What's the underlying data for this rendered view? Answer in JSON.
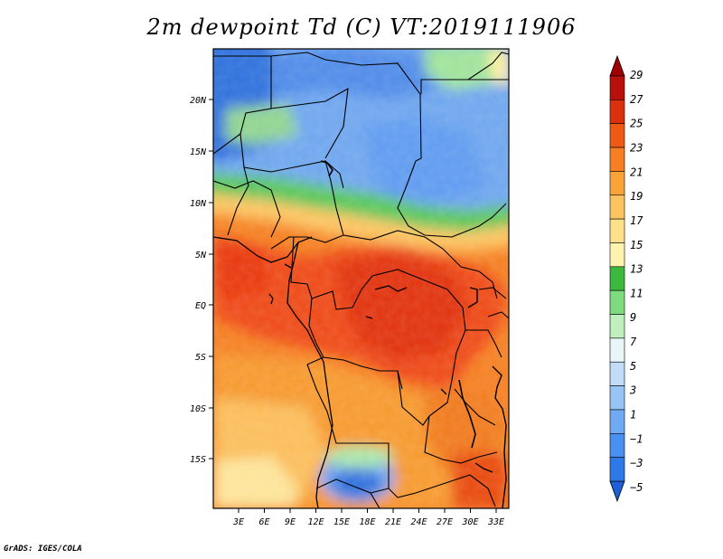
{
  "title": "2m dewpoint Td (C) VT:2019111906",
  "footer": "GrADS: IGES/COLA",
  "map": {
    "lat_labels": [
      "20N",
      "15N",
      "10N",
      "5N",
      "EQ",
      "5S",
      "10S",
      "15S"
    ],
    "lon_labels": [
      "3E",
      "6E",
      "9E",
      "12E",
      "15E",
      "18E",
      "21E",
      "24E",
      "27E",
      "30E",
      "33E"
    ],
    "lon_range": [
      0,
      35
    ],
    "lat_range": [
      -20,
      24
    ]
  },
  "colorbar": {
    "labels": [
      "29",
      "27",
      "25",
      "23",
      "21",
      "19",
      "17",
      "15",
      "13",
      "11",
      "9",
      "7",
      "5",
      "3",
      "1",
      "−1",
      "−3",
      "−5"
    ],
    "colors_bottom_to_top": [
      "#1c5fd6",
      "#2f78e8",
      "#4a90f0",
      "#70aaf2",
      "#98c4f5",
      "#c2dcf8",
      "#e8f6fa",
      "#bfeebf",
      "#7edb7e",
      "#3cb83c",
      "#fff3b0",
      "#fde18a",
      "#fcc460",
      "#f9a33a",
      "#f57f22",
      "#ee5a16",
      "#d9300e",
      "#b8100a",
      "#a00000"
    ]
  }
}
